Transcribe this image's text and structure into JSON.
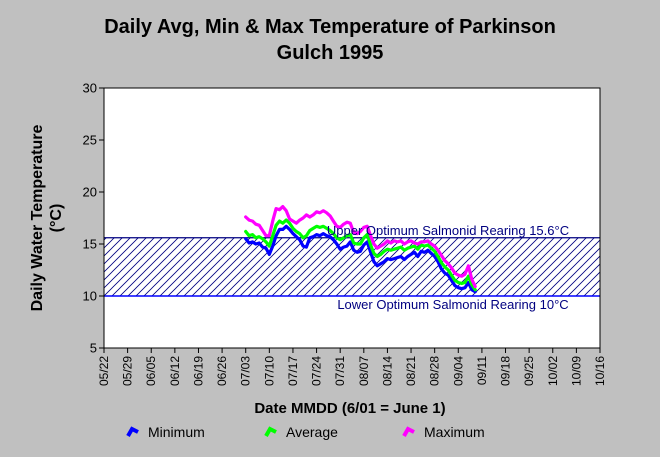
{
  "chart_data": {
    "type": "line",
    "title": "Daily Avg, Min & Max Temperature of Parkinson Gulch 1995",
    "xlabel": "Date MMDD (6/01 = June 1)",
    "ylabel": "Daily Water Temperature (°C)",
    "ylim": [
      5,
      30
    ],
    "yticks": [
      "5",
      "10",
      "15",
      "20",
      "25",
      "30"
    ],
    "xticks": [
      "05/22",
      "05/29",
      "06/05",
      "06/12",
      "06/19",
      "06/26",
      "07/03",
      "07/10",
      "07/17",
      "07/24",
      "07/31",
      "08/07",
      "08/14",
      "08/21",
      "08/28",
      "09/04",
      "09/11",
      "09/18",
      "09/25",
      "10/02",
      "10/09",
      "10/16"
    ],
    "grid": false,
    "legend_position": "bottom",
    "band": {
      "low": 10,
      "high": 15.6
    },
    "annotations": {
      "upper": "Upper Optimum Salmonid Rearing 15.6°C",
      "lower": "Lower Optimum Salmonid Rearing 10°C"
    },
    "series": [
      {
        "name": "Minimum",
        "color": "#0000ff",
        "values": [
          [
            42,
            15.5
          ],
          [
            43,
            15.1
          ],
          [
            44,
            15.2
          ],
          [
            45,
            15.0
          ],
          [
            46,
            15.1
          ],
          [
            47,
            14.7
          ],
          [
            48,
            14.6
          ],
          [
            49,
            14.0
          ],
          [
            50,
            14.8
          ],
          [
            51,
            15.8
          ],
          [
            52,
            16.4
          ],
          [
            53,
            16.4
          ],
          [
            54,
            16.7
          ],
          [
            55,
            16.4
          ],
          [
            56,
            16.0
          ],
          [
            57,
            15.7
          ],
          [
            58,
            15.4
          ],
          [
            59,
            14.8
          ],
          [
            60,
            14.7
          ],
          [
            61,
            15.6
          ],
          [
            62,
            15.7
          ],
          [
            63,
            15.9
          ],
          [
            64,
            15.8
          ],
          [
            65,
            16.0
          ],
          [
            66,
            15.8
          ],
          [
            67,
            15.7
          ],
          [
            68,
            15.4
          ],
          [
            69,
            15.0
          ],
          [
            70,
            14.5
          ],
          [
            71,
            14.7
          ],
          [
            72,
            14.8
          ],
          [
            73,
            15.2
          ],
          [
            74,
            14.4
          ],
          [
            75,
            14.2
          ],
          [
            76,
            14.3
          ],
          [
            77,
            14.9
          ],
          [
            78,
            15.2
          ],
          [
            79,
            14.2
          ],
          [
            80,
            13.3
          ],
          [
            81,
            12.9
          ],
          [
            82,
            13.1
          ],
          [
            83,
            13.3
          ],
          [
            84,
            13.6
          ],
          [
            85,
            13.5
          ],
          [
            86,
            13.6
          ],
          [
            87,
            13.7
          ],
          [
            88,
            13.8
          ],
          [
            89,
            13.5
          ],
          [
            90,
            13.8
          ],
          [
            91,
            14.0
          ],
          [
            92,
            14.2
          ],
          [
            93,
            13.8
          ],
          [
            94,
            14.3
          ],
          [
            95,
            14.2
          ],
          [
            96,
            14.4
          ],
          [
            97,
            14.1
          ],
          [
            98,
            13.8
          ],
          [
            99,
            13.3
          ],
          [
            100,
            12.6
          ],
          [
            101,
            12.2
          ],
          [
            102,
            12.0
          ],
          [
            103,
            11.5
          ],
          [
            104,
            11.0
          ],
          [
            105,
            10.8
          ],
          [
            106,
            10.7
          ],
          [
            107,
            10.8
          ],
          [
            108,
            11.3
          ],
          [
            109,
            10.6
          ],
          [
            110,
            10.4
          ]
        ]
      },
      {
        "name": "Average",
        "color": "#00ff00",
        "values": [
          [
            42,
            16.2
          ],
          [
            43,
            15.8
          ],
          [
            44,
            15.9
          ],
          [
            45,
            15.6
          ],
          [
            46,
            15.7
          ],
          [
            47,
            15.5
          ],
          [
            48,
            15.2
          ],
          [
            49,
            14.8
          ],
          [
            50,
            15.8
          ],
          [
            51,
            16.8
          ],
          [
            52,
            17.2
          ],
          [
            53,
            17.0
          ],
          [
            54,
            17.3
          ],
          [
            55,
            17.0
          ],
          [
            56,
            16.5
          ],
          [
            57,
            16.2
          ],
          [
            58,
            16.0
          ],
          [
            59,
            15.6
          ],
          [
            60,
            15.8
          ],
          [
            61,
            16.3
          ],
          [
            62,
            16.5
          ],
          [
            63,
            16.7
          ],
          [
            64,
            16.6
          ],
          [
            65,
            16.7
          ],
          [
            66,
            16.5
          ],
          [
            67,
            16.3
          ],
          [
            68,
            16.0
          ],
          [
            69,
            15.6
          ],
          [
            70,
            15.4
          ],
          [
            71,
            15.6
          ],
          [
            72,
            15.8
          ],
          [
            73,
            15.9
          ],
          [
            74,
            15.1
          ],
          [
            75,
            15.0
          ],
          [
            76,
            15.0
          ],
          [
            77,
            15.6
          ],
          [
            78,
            15.9
          ],
          [
            79,
            14.9
          ],
          [
            80,
            14.1
          ],
          [
            81,
            13.8
          ],
          [
            82,
            14.0
          ],
          [
            83,
            14.3
          ],
          [
            84,
            14.5
          ],
          [
            85,
            14.4
          ],
          [
            86,
            14.5
          ],
          [
            87,
            14.6
          ],
          [
            88,
            14.7
          ],
          [
            89,
            14.4
          ],
          [
            90,
            14.6
          ],
          [
            91,
            14.7
          ],
          [
            92,
            14.8
          ],
          [
            93,
            14.5
          ],
          [
            94,
            14.9
          ],
          [
            95,
            14.8
          ],
          [
            96,
            14.9
          ],
          [
            97,
            14.6
          ],
          [
            98,
            14.3
          ],
          [
            99,
            13.8
          ],
          [
            100,
            13.2
          ],
          [
            101,
            12.8
          ],
          [
            102,
            12.5
          ],
          [
            103,
            12.0
          ],
          [
            104,
            11.5
          ],
          [
            105,
            11.3
          ],
          [
            106,
            11.2
          ],
          [
            107,
            11.3
          ],
          [
            108,
            11.9
          ],
          [
            109,
            11.1
          ],
          [
            110,
            10.6
          ]
        ]
      },
      {
        "name": "Maximum",
        "color": "#ff00ff",
        "values": [
          [
            42,
            17.6
          ],
          [
            43,
            17.3
          ],
          [
            44,
            17.2
          ],
          [
            45,
            16.9
          ],
          [
            46,
            16.8
          ],
          [
            47,
            16.3
          ],
          [
            48,
            15.8
          ],
          [
            49,
            15.8
          ],
          [
            50,
            17.2
          ],
          [
            51,
            18.4
          ],
          [
            52,
            18.3
          ],
          [
            53,
            18.6
          ],
          [
            54,
            18.2
          ],
          [
            55,
            17.4
          ],
          [
            56,
            17.2
          ],
          [
            57,
            17.0
          ],
          [
            58,
            17.3
          ],
          [
            59,
            17.5
          ],
          [
            60,
            17.8
          ],
          [
            61,
            17.6
          ],
          [
            62,
            17.8
          ],
          [
            63,
            18.1
          ],
          [
            64,
            18.0
          ],
          [
            65,
            18.2
          ],
          [
            66,
            18.0
          ],
          [
            67,
            17.7
          ],
          [
            68,
            17.2
          ],
          [
            69,
            16.7
          ],
          [
            70,
            16.6
          ],
          [
            71,
            16.9
          ],
          [
            72,
            17.1
          ],
          [
            73,
            17.0
          ],
          [
            74,
            16.1
          ],
          [
            75,
            16.0
          ],
          [
            76,
            16.2
          ],
          [
            77,
            16.6
          ],
          [
            78,
            16.7
          ],
          [
            79,
            15.8
          ],
          [
            80,
            15.0
          ],
          [
            81,
            14.6
          ],
          [
            82,
            14.8
          ],
          [
            83,
            15.0
          ],
          [
            84,
            15.3
          ],
          [
            85,
            15.1
          ],
          [
            86,
            15.3
          ],
          [
            87,
            15.2
          ],
          [
            88,
            15.3
          ],
          [
            89,
            15.0
          ],
          [
            90,
            15.2
          ],
          [
            91,
            15.3
          ],
          [
            92,
            15.1
          ],
          [
            93,
            15.0
          ],
          [
            94,
            15.2
          ],
          [
            95,
            15.2
          ],
          [
            96,
            15.3
          ],
          [
            97,
            15.0
          ],
          [
            98,
            14.8
          ],
          [
            99,
            14.4
          ],
          [
            100,
            13.9
          ],
          [
            101,
            13.4
          ],
          [
            102,
            13.1
          ],
          [
            103,
            12.7
          ],
          [
            104,
            12.2
          ],
          [
            105,
            12.0
          ],
          [
            106,
            11.9
          ],
          [
            107,
            12.1
          ],
          [
            108,
            12.9
          ],
          [
            109,
            11.6
          ],
          [
            110,
            10.9
          ]
        ]
      }
    ]
  }
}
